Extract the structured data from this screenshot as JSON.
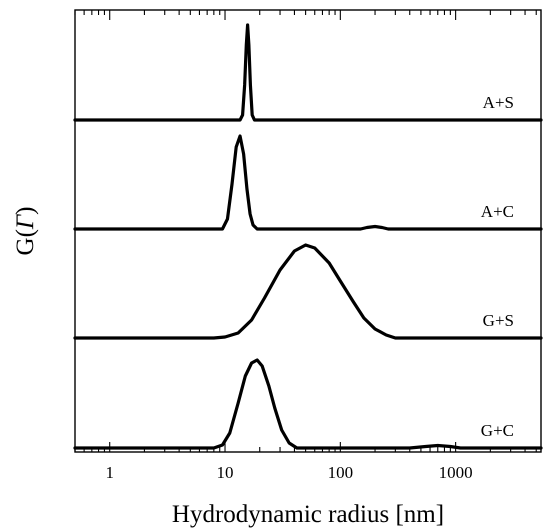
{
  "chart_data": {
    "type": "line",
    "xlabel": "Hydrodynamic radius [nm]",
    "ylabel_prefix": "G(",
    "ylabel_symbol": "Γ",
    "ylabel_suffix": ")",
    "xscale": "log",
    "xlim": [
      0.5,
      5500
    ],
    "xticks": [
      {
        "value": 1,
        "label": "1"
      },
      {
        "value": 10,
        "label": "10"
      },
      {
        "value": 100,
        "label": "100"
      },
      {
        "value": 1000,
        "label": "1000"
      }
    ],
    "grid": false,
    "series": [
      {
        "name": "A+S",
        "points": [
          [
            0.5,
            0
          ],
          [
            13.5,
            0
          ],
          [
            14.2,
            0.05
          ],
          [
            14.8,
            0.35
          ],
          [
            15.3,
            0.75
          ],
          [
            15.7,
            0.95
          ],
          [
            16.1,
            0.75
          ],
          [
            16.6,
            0.35
          ],
          [
            17.2,
            0.05
          ],
          [
            18,
            0
          ],
          [
            5500,
            0
          ]
        ]
      },
      {
        "name": "A+C",
        "points": [
          [
            0.5,
            0
          ],
          [
            9.5,
            0
          ],
          [
            10.5,
            0.1
          ],
          [
            11.5,
            0.45
          ],
          [
            12.5,
            0.82
          ],
          [
            13.5,
            0.93
          ],
          [
            14.5,
            0.75
          ],
          [
            15.5,
            0.4
          ],
          [
            16.5,
            0.15
          ],
          [
            17.5,
            0.04
          ],
          [
            19,
            0
          ],
          [
            150,
            0
          ],
          [
            170,
            0.015
          ],
          [
            200,
            0.025
          ],
          [
            230,
            0.015
          ],
          [
            260,
            0
          ],
          [
            5500,
            0
          ]
        ]
      },
      {
        "name": "G+S",
        "points": [
          [
            0.5,
            0
          ],
          [
            8,
            0
          ],
          [
            10,
            0.01
          ],
          [
            13,
            0.05
          ],
          [
            17,
            0.18
          ],
          [
            22,
            0.4
          ],
          [
            30,
            0.68
          ],
          [
            40,
            0.87
          ],
          [
            50,
            0.93
          ],
          [
            60,
            0.9
          ],
          [
            80,
            0.75
          ],
          [
            100,
            0.57
          ],
          [
            130,
            0.36
          ],
          [
            160,
            0.2
          ],
          [
            200,
            0.09
          ],
          [
            250,
            0.03
          ],
          [
            300,
            0
          ],
          [
            5500,
            0
          ]
        ]
      },
      {
        "name": "G+C",
        "points": [
          [
            0.5,
            0
          ],
          [
            8,
            0
          ],
          [
            9.5,
            0.03
          ],
          [
            11,
            0.15
          ],
          [
            13,
            0.45
          ],
          [
            15,
            0.72
          ],
          [
            17,
            0.85
          ],
          [
            19,
            0.88
          ],
          [
            21,
            0.82
          ],
          [
            24,
            0.62
          ],
          [
            27,
            0.4
          ],
          [
            31,
            0.18
          ],
          [
            36,
            0.05
          ],
          [
            42,
            0
          ],
          [
            400,
            0
          ],
          [
            550,
            0.015
          ],
          [
            700,
            0.025
          ],
          [
            900,
            0.015
          ],
          [
            1100,
            0
          ],
          [
            5500,
            0
          ]
        ]
      }
    ]
  }
}
